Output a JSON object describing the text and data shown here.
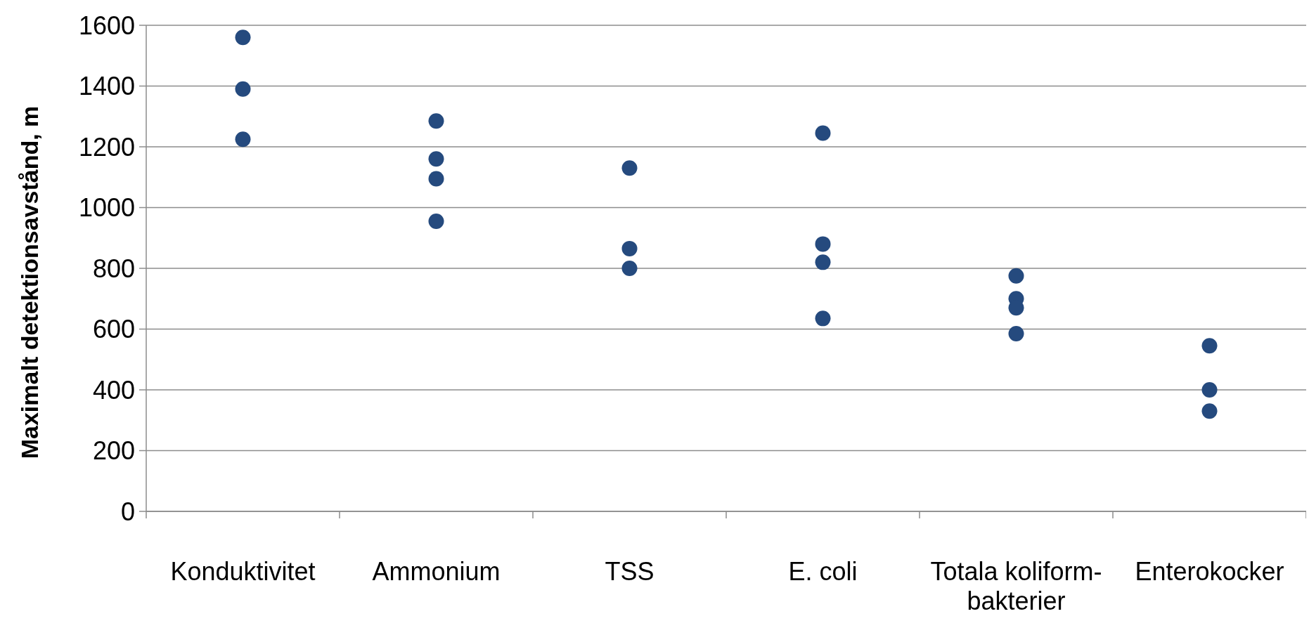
{
  "chart_data": {
    "type": "scatter",
    "ylabel": "Maximalt detektionsavstånd, m",
    "categories": [
      "Konduktivitet",
      "Ammonium",
      "TSS",
      "E. coli",
      "Totala koliform-bakterier",
      "Enterokocker"
    ],
    "series": [
      {
        "color": "#254a7e",
        "values": [
          1560,
          1285,
          1130,
          1245,
          775,
          545
        ]
      },
      {
        "color": "#254a7e",
        "values": [
          1390,
          1160,
          865,
          880,
          700,
          400
        ]
      },
      {
        "color": "#254a7e",
        "values": [
          1225,
          1095,
          800,
          820,
          670,
          330
        ]
      },
      {
        "color": "#254a7e",
        "values": [
          null,
          955,
          null,
          635,
          585,
          null
        ]
      }
    ],
    "ylim": [
      0,
      1600
    ],
    "yticks": [
      0,
      200,
      400,
      600,
      800,
      1000,
      1200,
      1400,
      1600
    ],
    "grid": "y",
    "marker": "circle"
  }
}
